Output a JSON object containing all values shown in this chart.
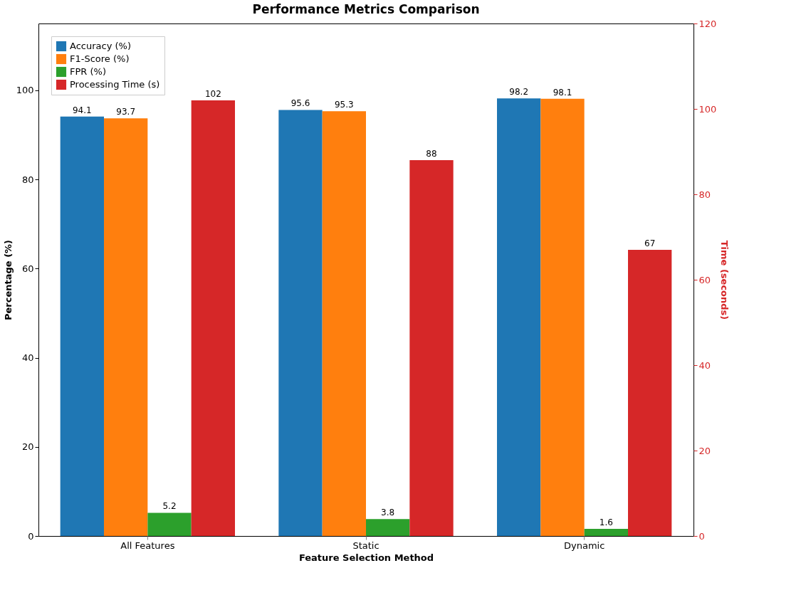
{
  "chart_data": {
    "type": "bar",
    "title": "Performance Metrics Comparison",
    "xlabel": "Feature Selection Method",
    "ylabel": "Percentage (%)",
    "y2label": "Time (seconds)",
    "categories": [
      "All Features",
      "Static",
      "Dynamic"
    ],
    "series": [
      {
        "name": "Accuracy (%)",
        "color": "#1f77b4",
        "values": [
          94.1,
          95.6,
          98.2
        ]
      },
      {
        "name": "F1-Score (%)",
        "color": "#ff7f0e",
        "values": [
          93.7,
          95.3,
          98.1
        ]
      },
      {
        "name": "FPR (%)",
        "color": "#2ca02c",
        "values": [
          5.2,
          3.8,
          1.6
        ]
      },
      {
        "name": "Processing Time (s)",
        "color": "#d62728",
        "values": [
          102,
          88,
          67
        ],
        "axis": "y2"
      }
    ],
    "ylim": [
      0,
      115
    ],
    "yticks": [
      0,
      20,
      40,
      60,
      80,
      100
    ],
    "y2lim": [
      0,
      120
    ],
    "y2ticks": [
      0,
      20,
      40,
      60,
      80,
      100,
      120
    ],
    "data_labels": true,
    "legend": "top left",
    "grid": false
  }
}
